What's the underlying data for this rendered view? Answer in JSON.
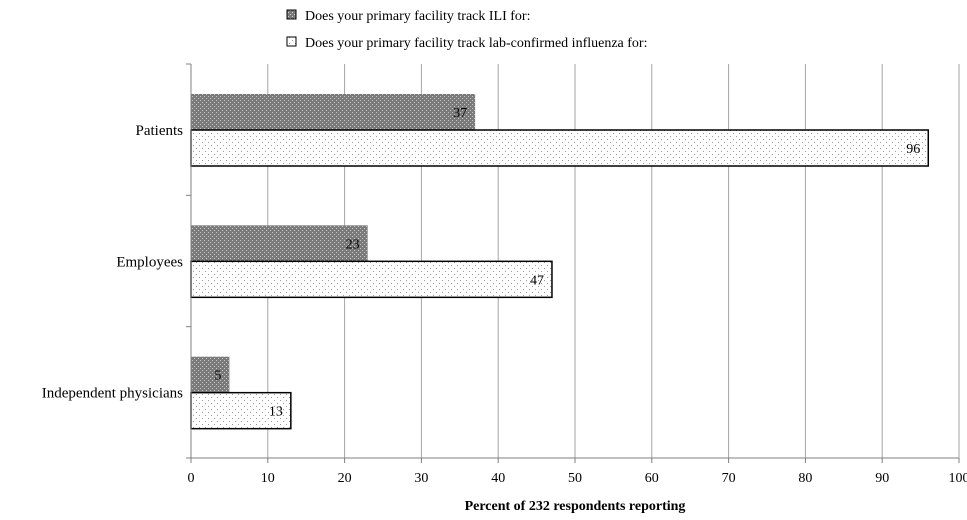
{
  "chart_data": {
    "type": "bar",
    "orientation": "horizontal",
    "categories": [
      "Patients",
      "Employees",
      "Independent physicians"
    ],
    "series": [
      {
        "name": "Does your primary facility track ILI for:",
        "values": [
          37,
          23,
          5
        ],
        "pattern": "dark-dotted",
        "color": "#808080"
      },
      {
        "name": "Does your primary facility track lab-confirmed influenza for:",
        "values": [
          96,
          47,
          13
        ],
        "pattern": "light-dotted",
        "color": "#ffffff"
      }
    ],
    "xlabel": "Percent of 232 respondents reporting",
    "ylabel": "",
    "xlim": [
      0,
      100
    ],
    "xticks": [
      0,
      10,
      20,
      30,
      40,
      50,
      60,
      70,
      80,
      90,
      100
    ],
    "grid": "vertical",
    "legend_position": "top"
  }
}
